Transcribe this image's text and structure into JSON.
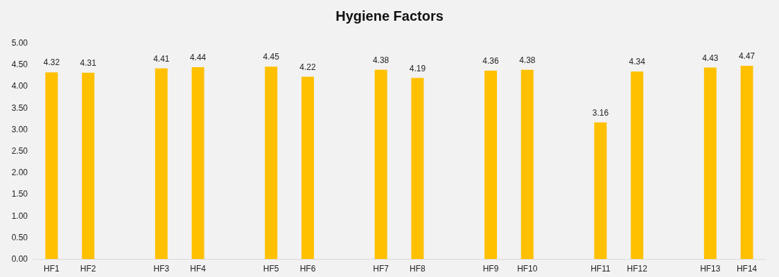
{
  "chart_data": {
    "type": "bar",
    "title": "Hygiene Factors",
    "categories": [
      "HF1",
      "HF2",
      null,
      "HF3",
      "HF4",
      null,
      "HF5",
      "HF6",
      null,
      "HF7",
      "HF8",
      null,
      "HF9",
      "HF10",
      null,
      "HF11",
      "HF12",
      null,
      "HF13",
      "HF14"
    ],
    "values": [
      4.32,
      4.31,
      null,
      4.41,
      4.44,
      null,
      4.45,
      4.22,
      null,
      4.38,
      4.19,
      null,
      4.36,
      4.38,
      null,
      3.16,
      4.34,
      null,
      4.43,
      4.47
    ],
    "color": "#ffc000",
    "data_labels": true,
    "grid": false,
    "ylim": [
      0,
      5
    ],
    "yticks": [
      {
        "value": 0,
        "label": "0.00"
      },
      {
        "value": 0.5,
        "label": "0.50"
      },
      {
        "value": 1,
        "label": "1.00"
      },
      {
        "value": 1.5,
        "label": "1.50"
      },
      {
        "value": 2,
        "label": "2.00"
      },
      {
        "value": 2.5,
        "label": "2.50"
      },
      {
        "value": 3,
        "label": "3.00"
      },
      {
        "value": 3.5,
        "label": "3.50"
      },
      {
        "value": 4,
        "label": "4.00"
      },
      {
        "value": 4.5,
        "label": "4.50"
      },
      {
        "value": 5,
        "label": "5.00"
      }
    ]
  }
}
